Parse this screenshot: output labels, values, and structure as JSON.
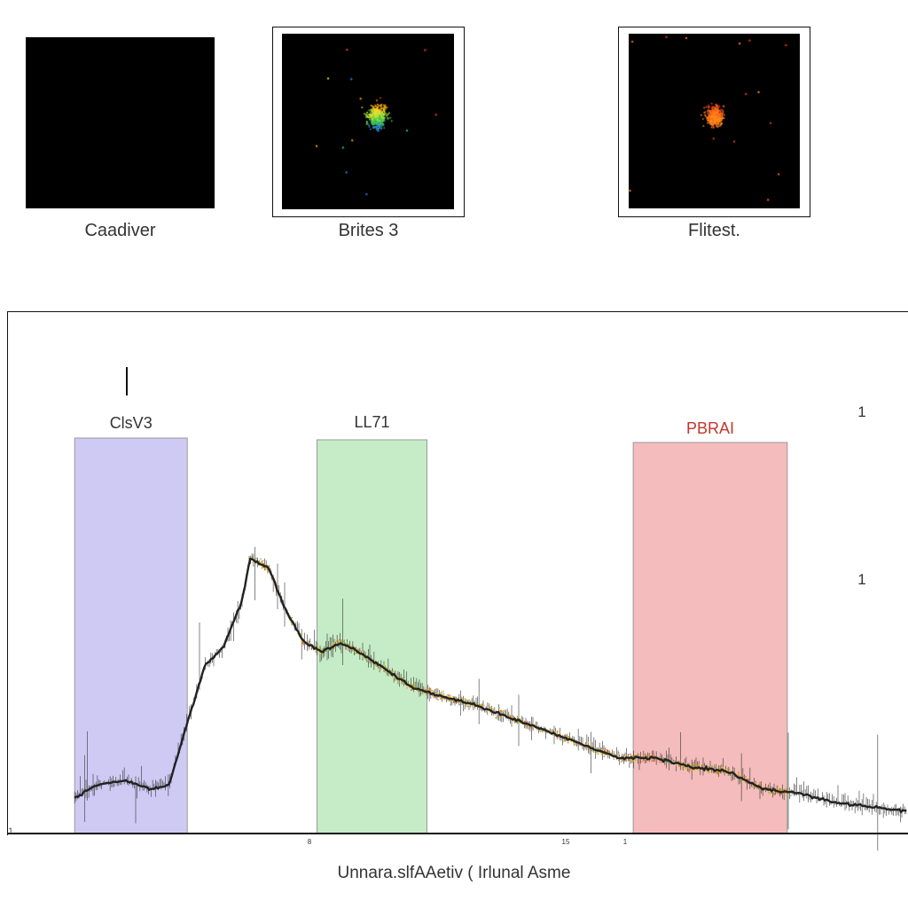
{
  "panels": [
    {
      "caption": "Caadiver",
      "content": "empty",
      "spot_colors": []
    },
    {
      "caption": "Brites 3",
      "content": "spot",
      "spot_colors": [
        "#ff3b2f",
        "#ffa500",
        "#e8e030",
        "#3ccf4a",
        "#2b7bff",
        "#1e90ff"
      ]
    },
    {
      "caption": "Flitest.",
      "content": "spot",
      "spot_colors": [
        "#ff3b1f",
        "#ff6a1a",
        "#ff8c1a",
        "#e04020"
      ]
    }
  ],
  "chart_data": {
    "type": "line",
    "xlabel": "Unnara.slfAAetiv ( Irlunal Asme",
    "ylabel": "",
    "tick_labels_x": [
      "8",
      "15",
      "1"
    ],
    "tick_labels_y": [
      "1",
      "1",
      "1"
    ],
    "line_color": "#222222",
    "highlight_colors": [
      "#ffd21a",
      "#7ab21e",
      "#e8a020",
      "#e06010"
    ],
    "regions": [
      {
        "label": "ClsV3",
        "color": "#cfcaf4",
        "label_color": "#333333",
        "x_start": 0.075,
        "x_end": 0.2
      },
      {
        "label": "LL71",
        "color": "#c5ecc6",
        "label_color": "#333333",
        "x_start": 0.344,
        "x_end": 0.466
      },
      {
        "label": "PBRAI",
        "color": "#f4bcbc",
        "label_color": "#c0392b",
        "x_start": 0.695,
        "x_end": 0.866
      }
    ],
    "series": [
      {
        "x": [
          0.075,
          0.1,
          0.13,
          0.16,
          0.18,
          0.2,
          0.22,
          0.24,
          0.26,
          0.27,
          0.29,
          0.31,
          0.33,
          0.35,
          0.37,
          0.39,
          0.42,
          0.45,
          0.48,
          0.52,
          0.56,
          0.6,
          0.64,
          0.68,
          0.72,
          0.76,
          0.8,
          0.84,
          0.88,
          0.92,
          0.96,
          1.0
        ],
        "y": [
          0.08,
          0.11,
          0.12,
          0.1,
          0.11,
          0.25,
          0.38,
          0.42,
          0.52,
          0.62,
          0.6,
          0.5,
          0.43,
          0.41,
          0.43,
          0.41,
          0.37,
          0.33,
          0.31,
          0.29,
          0.26,
          0.23,
          0.2,
          0.17,
          0.17,
          0.15,
          0.14,
          0.1,
          0.09,
          0.07,
          0.06,
          0.05
        ]
      }
    ],
    "xlim": [
      0,
      1
    ],
    "ylim": [
      0,
      1
    ]
  }
}
